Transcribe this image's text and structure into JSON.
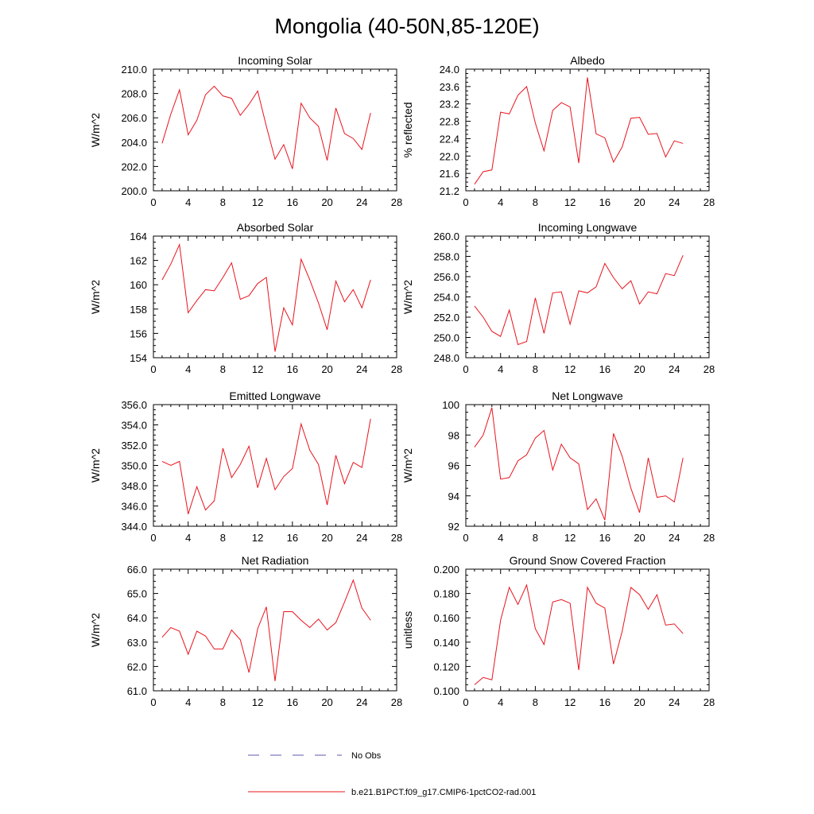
{
  "figure": {
    "title": "Mongolia (40-50N,85-120E)"
  },
  "legend": {
    "entries": [
      {
        "label": "No Obs",
        "color": "#5a5aa8",
        "style": "dashed"
      },
      {
        "label": "b.e21.B1PCT.f09_g17.CMIP6-1pctCO2-rad.001",
        "color": "#e8141e",
        "style": "solid"
      }
    ]
  },
  "colors": {
    "series": "#e8141e",
    "axis": "#000000"
  },
  "chart_data": [
    {
      "type": "line",
      "title": "Incoming Solar",
      "ylabel": "W/m^2",
      "xlim": [
        0,
        28
      ],
      "ylim": [
        200,
        210
      ],
      "xticks": [
        0,
        4,
        8,
        12,
        16,
        20,
        24,
        28
      ],
      "yticks": [
        "200.0",
        "202.0",
        "204.0",
        "206.0",
        "208.0",
        "210.0"
      ],
      "x": [
        1,
        2,
        3,
        4,
        5,
        6,
        7,
        8,
        9,
        10,
        11,
        12,
        13,
        14,
        15,
        16,
        17,
        18,
        19,
        20,
        21,
        22,
        23,
        24,
        25
      ],
      "series": [
        {
          "values": [
            203.9,
            206.3,
            208.3,
            204.6,
            205.8,
            207.9,
            208.6,
            207.8,
            207.6,
            206.2,
            207.1,
            208.2,
            205.3,
            202.6,
            203.8,
            201.8,
            207.2,
            206.0,
            205.3,
            202.5,
            206.8,
            204.7,
            204.3,
            203.4,
            206.4
          ]
        }
      ]
    },
    {
      "type": "line",
      "title": "Albedo",
      "ylabel": "% reflected",
      "xlim": [
        0,
        28
      ],
      "ylim": [
        21.2,
        24.0
      ],
      "xticks": [
        0,
        4,
        8,
        12,
        16,
        20,
        24,
        28
      ],
      "yticks": [
        "21.2",
        "21.6",
        "22.0",
        "22.4",
        "22.8",
        "23.2",
        "23.6",
        "24.0"
      ],
      "x": [
        1,
        2,
        3,
        4,
        5,
        6,
        7,
        8,
        9,
        10,
        11,
        12,
        13,
        14,
        15,
        16,
        17,
        18,
        19,
        20,
        21,
        22,
        23,
        24,
        25
      ],
      "series": [
        {
          "values": [
            21.35,
            21.64,
            21.68,
            23.01,
            22.97,
            23.4,
            23.6,
            22.76,
            22.12,
            23.05,
            23.23,
            23.13,
            21.84,
            23.81,
            22.51,
            22.42,
            21.86,
            22.21,
            22.87,
            22.89,
            22.5,
            22.52,
            21.98,
            22.35,
            22.29
          ]
        }
      ]
    },
    {
      "type": "line",
      "title": "Absorbed Solar",
      "ylabel": "W/m^2",
      "xlim": [
        0,
        28
      ],
      "ylim": [
        154,
        164
      ],
      "xticks": [
        0,
        4,
        8,
        12,
        16,
        20,
        24,
        28
      ],
      "yticks": [
        "154",
        "156",
        "158",
        "160",
        "162",
        "164"
      ],
      "x": [
        1,
        2,
        3,
        4,
        5,
        6,
        7,
        8,
        9,
        10,
        11,
        12,
        13,
        14,
        15,
        16,
        17,
        18,
        19,
        20,
        21,
        22,
        23,
        24,
        25
      ],
      "series": [
        {
          "values": [
            160.4,
            161.7,
            163.3,
            157.7,
            158.7,
            159.6,
            159.5,
            160.6,
            161.8,
            158.8,
            159.1,
            160.1,
            160.6,
            154.5,
            158.1,
            156.7,
            162.1,
            160.4,
            158.5,
            156.3,
            160.3,
            158.6,
            159.6,
            158.1,
            160.4
          ]
        }
      ]
    },
    {
      "type": "line",
      "title": "Incoming Longwave",
      "ylabel": "W/m^2",
      "xlim": [
        0,
        28
      ],
      "ylim": [
        248,
        260
      ],
      "xticks": [
        0,
        4,
        8,
        12,
        16,
        20,
        24,
        28
      ],
      "yticks": [
        "248.0",
        "250.0",
        "252.0",
        "254.0",
        "256.0",
        "258.0",
        "260.0"
      ],
      "x": [
        1,
        2,
        3,
        4,
        5,
        6,
        7,
        8,
        9,
        10,
        11,
        12,
        13,
        14,
        15,
        16,
        17,
        18,
        19,
        20,
        21,
        22,
        23,
        24,
        25
      ],
      "series": [
        {
          "values": [
            253.1,
            252.0,
            250.6,
            250.1,
            252.7,
            249.3,
            249.6,
            253.9,
            250.4,
            254.4,
            254.5,
            251.3,
            254.6,
            254.4,
            255.0,
            257.3,
            255.9,
            254.8,
            255.6,
            253.3,
            254.5,
            254.3,
            256.3,
            256.1,
            258.1
          ]
        }
      ]
    },
    {
      "type": "line",
      "title": "Emitted Longwave",
      "ylabel": "W/m^2",
      "xlim": [
        0,
        28
      ],
      "ylim": [
        344,
        356
      ],
      "xticks": [
        0,
        4,
        8,
        12,
        16,
        20,
        24,
        28
      ],
      "yticks": [
        "344.0",
        "346.0",
        "348.0",
        "350.0",
        "352.0",
        "354.0",
        "356.0"
      ],
      "x": [
        1,
        2,
        3,
        4,
        5,
        6,
        7,
        8,
        9,
        10,
        11,
        12,
        13,
        14,
        15,
        16,
        17,
        18,
        19,
        20,
        21,
        22,
        23,
        24,
        25
      ],
      "series": [
        {
          "values": [
            350.4,
            350.0,
            350.4,
            345.2,
            347.9,
            345.6,
            346.5,
            351.7,
            348.8,
            350.1,
            351.9,
            347.8,
            350.7,
            347.6,
            348.9,
            349.7,
            354.1,
            351.5,
            350.1,
            346.1,
            351.0,
            348.2,
            350.3,
            349.8,
            354.6
          ]
        }
      ]
    },
    {
      "type": "line",
      "title": "Net Longwave",
      "ylabel": "W/m^2",
      "xlim": [
        0,
        28
      ],
      "ylim": [
        92,
        100
      ],
      "xticks": [
        0,
        4,
        8,
        12,
        16,
        20,
        24,
        28
      ],
      "yticks": [
        "92",
        "94",
        "96",
        "98",
        "100"
      ],
      "x": [
        1,
        2,
        3,
        4,
        5,
        6,
        7,
        8,
        9,
        10,
        11,
        12,
        13,
        14,
        15,
        16,
        17,
        18,
        19,
        20,
        21,
        22,
        23,
        24,
        25
      ],
      "series": [
        {
          "values": [
            97.2,
            98.0,
            99.8,
            95.1,
            95.2,
            96.3,
            96.7,
            97.8,
            98.3,
            95.7,
            97.4,
            96.5,
            96.1,
            93.1,
            93.8,
            92.4,
            98.1,
            96.6,
            94.5,
            92.9,
            96.5,
            93.9,
            94.0,
            93.6,
            96.5
          ]
        }
      ]
    },
    {
      "type": "line",
      "title": "Net Radiation",
      "ylabel": "W/m^2",
      "xlim": [
        0,
        28
      ],
      "ylim": [
        61,
        66
      ],
      "xticks": [
        0,
        4,
        8,
        12,
        16,
        20,
        24,
        28
      ],
      "yticks": [
        "61.0",
        "62.0",
        "63.0",
        "64.0",
        "65.0",
        "66.0"
      ],
      "x": [
        1,
        2,
        3,
        4,
        5,
        6,
        7,
        8,
        9,
        10,
        11,
        12,
        13,
        14,
        15,
        16,
        17,
        18,
        19,
        20,
        21,
        22,
        23,
        24,
        25
      ],
      "series": [
        {
          "values": [
            63.2,
            63.6,
            63.45,
            62.5,
            63.45,
            63.25,
            62.72,
            62.72,
            63.5,
            63.1,
            61.75,
            63.55,
            64.45,
            61.4,
            64.25,
            64.25,
            63.9,
            63.6,
            63.95,
            63.5,
            63.8,
            64.65,
            65.55,
            64.4,
            63.9
          ]
        }
      ]
    },
    {
      "type": "line",
      "title": "Ground Snow Covered Fraction",
      "ylabel": "unitless",
      "xlim": [
        0,
        28
      ],
      "ylim": [
        0.1,
        0.2
      ],
      "xticks": [
        0,
        4,
        8,
        12,
        16,
        20,
        24,
        28
      ],
      "yticks": [
        "0.100",
        "0.120",
        "0.140",
        "0.160",
        "0.180",
        "0.200"
      ],
      "x": [
        1,
        2,
        3,
        4,
        5,
        6,
        7,
        8,
        9,
        10,
        11,
        12,
        13,
        14,
        15,
        16,
        17,
        18,
        19,
        20,
        21,
        22,
        23,
        24,
        25
      ],
      "series": [
        {
          "values": [
            0.105,
            0.111,
            0.109,
            0.158,
            0.185,
            0.171,
            0.187,
            0.151,
            0.138,
            0.173,
            0.175,
            0.172,
            0.117,
            0.185,
            0.172,
            0.168,
            0.122,
            0.149,
            0.185,
            0.179,
            0.167,
            0.179,
            0.154,
            0.155,
            0.147
          ]
        }
      ]
    }
  ]
}
